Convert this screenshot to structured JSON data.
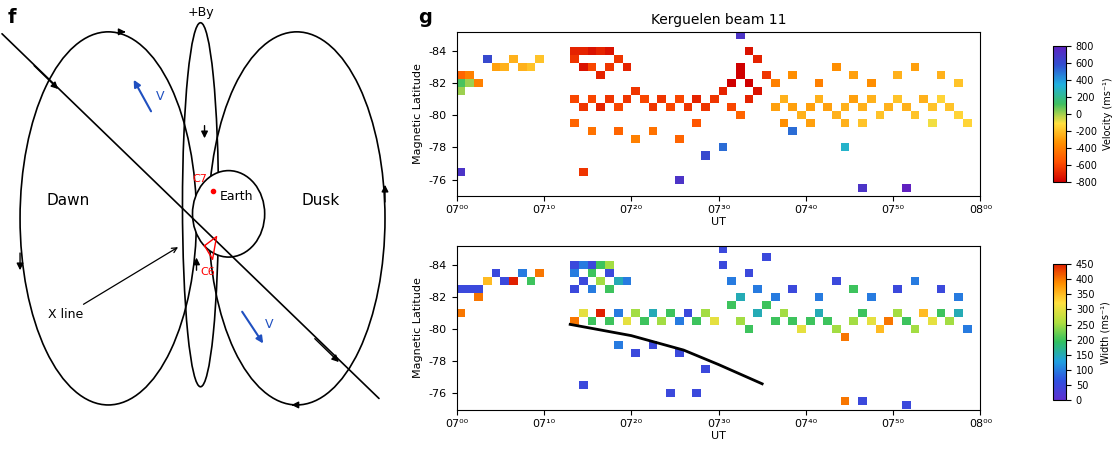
{
  "diagram": {
    "panel_label": "f",
    "top_label": "+By",
    "dawn": "Dawn",
    "dusk": "Dusk",
    "earth": "Earth",
    "x_line": "X line",
    "spacecraft": [
      "C7",
      "C6"
    ],
    "velocity": [
      "V",
      "V"
    ]
  },
  "panel_label": "g",
  "chart_data": [
    {
      "type": "heatmap",
      "title": "Kerguelen beam 11",
      "x_label": "UT",
      "y_label": "Magnetic Latitude",
      "xlim": [
        0,
        60
      ],
      "xticks": [
        {
          "value": 0,
          "label": "07⁰⁰"
        },
        {
          "value": 10,
          "label": "07¹⁰"
        },
        {
          "value": 20,
          "label": "07²⁰"
        },
        {
          "value": 30,
          "label": "07³⁰"
        },
        {
          "value": 40,
          "label": "07⁴⁰"
        },
        {
          "value": 50,
          "label": "07⁵⁰"
        },
        {
          "value": 60,
          "label": "08⁰⁰"
        }
      ],
      "ylim": [
        -75,
        -85.2
      ],
      "yticks": [
        -84,
        -82,
        -80,
        -78,
        -76
      ],
      "colorbar": {
        "label": "Velocity (ms⁻¹)",
        "range": [
          -800,
          800
        ],
        "ticks": [
          800,
          600,
          400,
          200,
          0,
          -200,
          -400,
          -600,
          -800
        ]
      },
      "cells": [
        [
          0,
          -82.5,
          -500
        ],
        [
          1,
          -82.5,
          -400
        ],
        [
          0,
          -82,
          100
        ],
        [
          1,
          -82,
          0
        ],
        [
          0,
          -81.5,
          0
        ],
        [
          2,
          -82,
          -400
        ],
        [
          0,
          -76.5,
          700
        ],
        [
          4,
          -83,
          -300
        ],
        [
          5,
          -83,
          -250
        ],
        [
          6,
          -83.5,
          -250
        ],
        [
          7,
          -83,
          -250
        ],
        [
          8,
          -83,
          -200
        ],
        [
          9,
          -83.5,
          -200
        ],
        [
          3,
          -83.5,
          600
        ],
        [
          13,
          -84,
          -700
        ],
        [
          14,
          -84,
          -700
        ],
        [
          15,
          -84,
          -750
        ],
        [
          16,
          -84,
          -700
        ],
        [
          17,
          -84,
          -750
        ],
        [
          13,
          -83.5,
          -650
        ],
        [
          14,
          -83,
          -750
        ],
        [
          15,
          -83,
          -600
        ],
        [
          16,
          -82.5,
          -700
        ],
        [
          17,
          -83,
          -650
        ],
        [
          18,
          -83.5,
          -650
        ],
        [
          19,
          -83,
          -700
        ],
        [
          13,
          -81,
          -600
        ],
        [
          14,
          -80.5,
          -650
        ],
        [
          15,
          -81,
          -600
        ],
        [
          16,
          -80.5,
          -700
        ],
        [
          17,
          -81,
          -650
        ],
        [
          18,
          -80.5,
          -600
        ],
        [
          19,
          -81,
          -650
        ],
        [
          20,
          -81.5,
          -650
        ],
        [
          21,
          -81,
          -600
        ],
        [
          22,
          -80.5,
          -650
        ],
        [
          23,
          -81,
          -650
        ],
        [
          24,
          -80.5,
          -600
        ],
        [
          25,
          -81,
          -600
        ],
        [
          26,
          -80.5,
          -650
        ],
        [
          27,
          -81,
          -700
        ],
        [
          28,
          -80.5,
          -650
        ],
        [
          29,
          -81,
          -650
        ],
        [
          30,
          -81.5,
          -700
        ],
        [
          31,
          -82,
          -800
        ],
        [
          32,
          -83,
          -800
        ],
        [
          33,
          -84,
          -750
        ],
        [
          32,
          -82.5,
          -800
        ],
        [
          33,
          -82,
          -800
        ],
        [
          34,
          -83.5,
          -700
        ],
        [
          35,
          -82.5,
          -650
        ],
        [
          34,
          -81.5,
          -750
        ],
        [
          33,
          -81,
          -700
        ],
        [
          31,
          -80.5,
          -600
        ],
        [
          32,
          -80,
          -500
        ],
        [
          13,
          -79.5,
          -500
        ],
        [
          15,
          -79,
          -450
        ],
        [
          18,
          -79,
          -500
        ],
        [
          20,
          -78.5,
          -400
        ],
        [
          22,
          -79,
          -450
        ],
        [
          25,
          -78.5,
          -500
        ],
        [
          27,
          -79.5,
          -550
        ],
        [
          14,
          -76.5,
          -650
        ],
        [
          36,
          -80.5,
          -300
        ],
        [
          37,
          -81,
          -250
        ],
        [
          38,
          -80.5,
          -300
        ],
        [
          39,
          -80,
          -250
        ],
        [
          40,
          -80.5,
          -300
        ],
        [
          41,
          -81,
          -250
        ],
        [
          42,
          -80.5,
          -300
        ],
        [
          43,
          -80,
          -250
        ],
        [
          44,
          -80.5,
          -250
        ],
        [
          45,
          -81,
          -300
        ],
        [
          46,
          -80.5,
          -250
        ],
        [
          47,
          -81,
          -250
        ],
        [
          48,
          -80,
          -200
        ],
        [
          49,
          -80.5,
          -250
        ],
        [
          50,
          -81,
          -200
        ],
        [
          51,
          -80.5,
          -250
        ],
        [
          52,
          -80,
          -200
        ],
        [
          53,
          -81,
          -250
        ],
        [
          54,
          -80.5,
          -200
        ],
        [
          55,
          -81,
          -150
        ],
        [
          56,
          -80.5,
          -200
        ],
        [
          57,
          -80,
          -150
        ],
        [
          58,
          -79.5,
          -150
        ],
        [
          37,
          -79.5,
          -350
        ],
        [
          40,
          -79.5,
          -300
        ],
        [
          44,
          -79.5,
          -250
        ],
        [
          36,
          -82,
          -400
        ],
        [
          38,
          -82.5,
          -350
        ],
        [
          41,
          -82,
          -400
        ],
        [
          43,
          -83,
          -350
        ],
        [
          45,
          -82.5,
          -300
        ],
        [
          47,
          -82,
          -350
        ],
        [
          50,
          -82.5,
          -250
        ],
        [
          52,
          -83,
          -300
        ],
        [
          55,
          -82.5,
          -250
        ],
        [
          57,
          -82,
          -200
        ],
        [
          54,
          -79.5,
          -100
        ],
        [
          46,
          -79.5,
          -200
        ],
        [
          28,
          -77.5,
          600
        ],
        [
          25,
          -76,
          700
        ],
        [
          30,
          -78,
          500
        ],
        [
          32,
          -85,
          700
        ],
        [
          46,
          -75.5,
          700
        ],
        [
          51,
          -75.5,
          800
        ],
        [
          38,
          -79,
          500
        ],
        [
          44,
          -78,
          300
        ]
      ]
    },
    {
      "type": "heatmap",
      "x_label": "UT",
      "y_label": "Magnetic Latitude",
      "xlim": [
        0,
        60
      ],
      "xticks": [
        {
          "value": 0,
          "label": "07⁰⁰"
        },
        {
          "value": 10,
          "label": "07¹⁰"
        },
        {
          "value": 20,
          "label": "07²⁰"
        },
        {
          "value": 30,
          "label": "07³⁰"
        },
        {
          "value": 40,
          "label": "07⁴⁰"
        },
        {
          "value": 50,
          "label": "07⁵⁰"
        },
        {
          "value": 60,
          "label": "08⁰⁰"
        }
      ],
      "ylim": [
        -75,
        -85.2
      ],
      "yticks": [
        -84,
        -82,
        -80,
        -78,
        -76
      ],
      "colorbar": {
        "label": "Width (ms⁻¹)",
        "range": [
          0,
          450
        ],
        "ticks": [
          450,
          400,
          350,
          300,
          250,
          200,
          150,
          100,
          50,
          0
        ]
      },
      "line": {
        "x": [
          13,
          20,
          26,
          30,
          35
        ],
        "y": [
          -80.3,
          -79.6,
          -78.7,
          -77.8,
          -76.6
        ],
        "color": "black"
      },
      "cells": [
        [
          0,
          -82.5,
          50
        ],
        [
          1,
          -82.5,
          50
        ],
        [
          2,
          -82.5,
          50
        ],
        [
          3,
          -83,
          350
        ],
        [
          0,
          -81,
          400
        ],
        [
          2,
          -82,
          400
        ],
        [
          4,
          -83.5,
          50
        ],
        [
          5,
          -83,
          50
        ],
        [
          6,
          -83,
          450
        ],
        [
          7,
          -83.5,
          100
        ],
        [
          8,
          -83,
          200
        ],
        [
          9,
          -83.5,
          400
        ],
        [
          13,
          -84,
          50
        ],
        [
          14,
          -84,
          100
        ],
        [
          15,
          -84,
          50
        ],
        [
          16,
          -84,
          200
        ],
        [
          17,
          -84,
          250
        ],
        [
          13,
          -83.5,
          100
        ],
        [
          14,
          -83,
          50
        ],
        [
          15,
          -83.5,
          200
        ],
        [
          16,
          -83,
          250
        ],
        [
          17,
          -83.5,
          50
        ],
        [
          18,
          -83,
          150
        ],
        [
          19,
          -83,
          100
        ],
        [
          13,
          -82.5,
          50
        ],
        [
          15,
          -82.5,
          100
        ],
        [
          17,
          -82.5,
          200
        ],
        [
          13,
          -80.5,
          400
        ],
        [
          14,
          -81,
          300
        ],
        [
          15,
          -80.5,
          200
        ],
        [
          16,
          -81,
          450
        ],
        [
          17,
          -80.5,
          200
        ],
        [
          18,
          -81,
          100
        ],
        [
          19,
          -80.5,
          300
        ],
        [
          20,
          -81,
          250
        ],
        [
          21,
          -80.5,
          200
        ],
        [
          22,
          -81,
          150
        ],
        [
          23,
          -80.5,
          250
        ],
        [
          24,
          -81,
          200
        ],
        [
          25,
          -80.5,
          100
        ],
        [
          26,
          -81,
          50
        ],
        [
          27,
          -80.5,
          200
        ],
        [
          28,
          -81,
          250
        ],
        [
          29,
          -80.5,
          300
        ],
        [
          30,
          -84,
          50
        ],
        [
          31,
          -83,
          100
        ],
        [
          32,
          -82,
          150
        ],
        [
          33,
          -83.5,
          50
        ],
        [
          34,
          -82.5,
          100
        ],
        [
          35,
          -81.5,
          200
        ],
        [
          31,
          -81.5,
          200
        ],
        [
          32,
          -80.5,
          250
        ],
        [
          33,
          -80,
          200
        ],
        [
          34,
          -81,
          150
        ],
        [
          30,
          -85,
          50
        ],
        [
          35,
          -84.5,
          50
        ],
        [
          36,
          -80.5,
          200
        ],
        [
          37,
          -81,
          250
        ],
        [
          38,
          -80.5,
          200
        ],
        [
          39,
          -80,
          300
        ],
        [
          40,
          -80.5,
          200
        ],
        [
          41,
          -81,
          150
        ],
        [
          42,
          -80.5,
          200
        ],
        [
          43,
          -80,
          250
        ],
        [
          44,
          -79.5,
          400
        ],
        [
          45,
          -80.5,
          250
        ],
        [
          46,
          -81,
          200
        ],
        [
          47,
          -80.5,
          300
        ],
        [
          48,
          -80,
          350
        ],
        [
          49,
          -80.5,
          400
        ],
        [
          50,
          -81,
          250
        ],
        [
          51,
          -80.5,
          200
        ],
        [
          52,
          -80,
          250
        ],
        [
          53,
          -81,
          350
        ],
        [
          54,
          -80.5,
          300
        ],
        [
          55,
          -81,
          200
        ],
        [
          56,
          -80.5,
          250
        ],
        [
          57,
          -81,
          150
        ],
        [
          58,
          -80,
          100
        ],
        [
          36,
          -82,
          100
        ],
        [
          38,
          -82.5,
          50
        ],
        [
          41,
          -82,
          100
        ],
        [
          43,
          -83,
          50
        ],
        [
          45,
          -82.5,
          200
        ],
        [
          47,
          -82,
          100
        ],
        [
          50,
          -82.5,
          50
        ],
        [
          52,
          -83,
          100
        ],
        [
          55,
          -82.5,
          50
        ],
        [
          57,
          -82,
          100
        ],
        [
          14,
          -76.5,
          50
        ],
        [
          20,
          -78.5,
          50
        ],
        [
          22,
          -79,
          50
        ],
        [
          25,
          -78.5,
          50
        ],
        [
          27,
          -76,
          50
        ],
        [
          24,
          -76,
          50
        ],
        [
          44,
          -75.5,
          400
        ],
        [
          46,
          -75.5,
          50
        ],
        [
          51,
          -75.3,
          50
        ],
        [
          28,
          -77.5,
          50
        ],
        [
          18,
          -79,
          100
        ]
      ]
    }
  ]
}
